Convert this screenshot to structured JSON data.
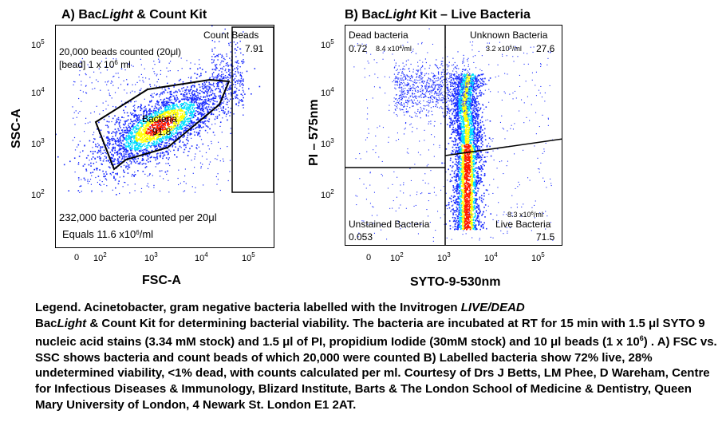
{
  "panel_a": {
    "title_prefix": "A) Bac",
    "title_italic": "Light",
    "title_suffix": " & Count Kit",
    "xlabel": "FSC-A",
    "ylabel": "SSC-A",
    "x_ticks": [
      "0",
      "10",
      "10",
      "10",
      "10"
    ],
    "x_tick_exp": [
      "",
      "2",
      "3",
      "4",
      "5"
    ],
    "y_ticks": [
      "10",
      "10",
      "10",
      "10"
    ],
    "y_tick_exp": [
      "5",
      "4",
      "3",
      "2"
    ],
    "gate_count_beads_label": "Count Beads",
    "gate_count_beads_value": "7.91",
    "gate_bacteria_label": "Bacteria",
    "gate_bacteria_value": "91.8",
    "note_beads_line1": "20,000 beads counted (20μl)",
    "note_beads_line2_pre": "[bead] 1 x 10",
    "note_beads_line2_exp": "6",
    "note_beads_line2_post": " ml",
    "note_bacteria_line1": "232,000 bacteria counted per 20μl",
    "note_bacteria_line2_pre": "Equals 11.6 x10",
    "note_bacteria_line2_exp": "6",
    "note_bacteria_line2_post": "/ml"
  },
  "panel_b": {
    "title_prefix": "B) Bac",
    "title_italic": "Light",
    "title_suffix": " Kit – Live Bacteria",
    "xlabel": "SYTO-9-530nm",
    "ylabel": "PI – 575nm",
    "x_ticks": [
      "0",
      "10",
      "10",
      "10",
      "10"
    ],
    "x_tick_exp": [
      "",
      "2",
      "3",
      "4",
      "5"
    ],
    "y_ticks": [
      "10",
      "10",
      "10",
      "10"
    ],
    "y_tick_exp": [
      "5",
      "4",
      "3",
      "2"
    ],
    "q_dead_label": "Dead bacteria",
    "q_dead_value": "0.72",
    "q_dead_conc_pre": "8.4 x10",
    "q_dead_conc_exp": "4",
    "q_dead_conc_post": "/ml",
    "q_unknown_label": "Unknown Bacteria",
    "q_unknown_value": "27.6",
    "q_unknown_conc_pre": "3.2 x10",
    "q_unknown_conc_exp": "6",
    "q_unknown_conc_post": "/ml",
    "q_unstained_label": "Unstained Bacteria",
    "q_unstained_value": "0.053",
    "q_live_label": "Live Bacteria",
    "q_live_value": "71.5",
    "q_live_conc_pre": "8.3 x10",
    "q_live_conc_exp": "6",
    "q_live_conc_post": "/ml"
  },
  "legend": {
    "s1": "Legend. Acinetobacter, gram negative bacteria labelled with the Invitrogen ",
    "s1_italic": "LIVE/DEAD",
    "s2": "Bac",
    "s2_italic": "Light",
    "s3": "  & Count Kit for determining bacterial viability. The bacteria are incubated at RT for 15 min with 1.5 μl SYTO 9 nucleic acid stains (3.34 mM stock) and 1.5 μl of PI, propidium Iodide (30mM stock) and 10 μl beads (1 x 10",
    "s3_exp": "6",
    "s4": ") . A) FSC vs. SSC shows bacteria and count beads of which 20,000 were counted B) Labelled bacteria show 72% live, 28% undetermined viability, <1% dead, with counts calculated per ml. Courtesy of Drs J Betts, LM Phee, D Wareham, Centre for Infectious Diseases & Immunology, Blizard Institute, Barts & The London School of Medicine & Dentistry, Queen Mary University of London, 4 Newark St. London E1 2AT."
  },
  "colors": {
    "density_low": "#1a2cff",
    "density_mid": "#00e0ff",
    "density_high": "#ffff00",
    "density_peak": "#ff1a00"
  }
}
